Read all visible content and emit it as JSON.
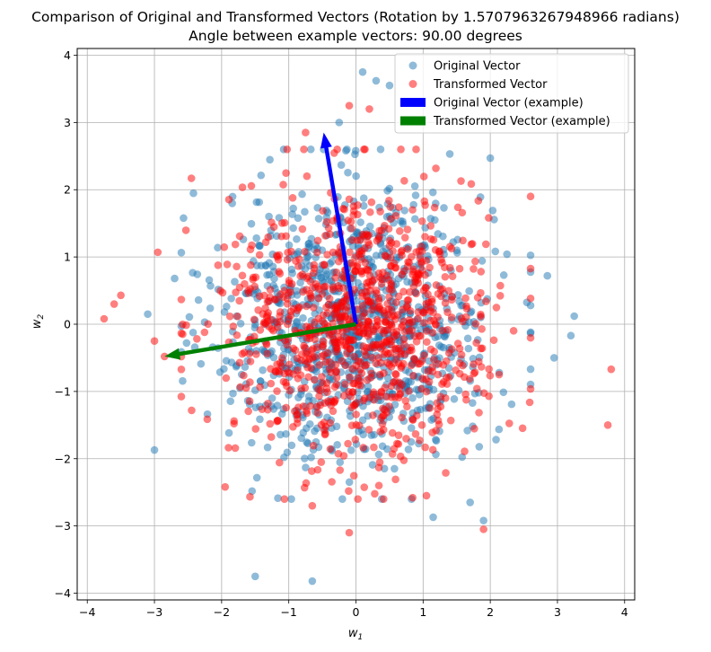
{
  "chart_data": {
    "type": "scatter",
    "title": "Comparison of Original and Transformed Vectors (Rotation by 1.5707963267948966 radians)",
    "subtitle": "Angle between example vectors: 90.00 degrees",
    "xlabel_base": "w",
    "xlabel_sub": "1",
    "ylabel_base": "w",
    "ylabel_sub": "2",
    "xlim": [
      -4.15,
      4.15
    ],
    "ylim": [
      -4.1,
      4.1
    ],
    "xticks": [
      -4,
      -3,
      -2,
      -1,
      0,
      1,
      2,
      3,
      4
    ],
    "yticks": [
      -4,
      -3,
      -2,
      -1,
      0,
      1,
      2,
      3,
      4
    ],
    "xtick_labels": [
      "−4",
      "−3",
      "−2",
      "−1",
      "0",
      "1",
      "2",
      "3",
      "4"
    ],
    "ytick_labels": [
      "−4",
      "−3",
      "−2",
      "−1",
      "0",
      "1",
      "2",
      "3",
      "4"
    ],
    "grid": true,
    "legend_position": "top-right",
    "series": [
      {
        "name": "Original Vector",
        "color": "#1f77b4",
        "sample_count": 1000,
        "distribution": "standard normal, mean [0, 0], std 1",
        "outlier_points": [
          {
            "x": 0.1,
            "y": 3.75
          },
          {
            "x": 0.3,
            "y": 3.62
          },
          {
            "x": -0.25,
            "y": 3.0
          },
          {
            "x": 0.5,
            "y": 3.55
          },
          {
            "x": 2.0,
            "y": 2.47
          },
          {
            "x": 3.25,
            "y": 0.12
          },
          {
            "x": -3.1,
            "y": 0.15
          },
          {
            "x": -3.0,
            "y": -1.87
          },
          {
            "x": -1.5,
            "y": -3.75
          },
          {
            "x": -0.65,
            "y": -3.82
          },
          {
            "x": 1.9,
            "y": -2.92
          },
          {
            "x": 1.7,
            "y": -2.65
          },
          {
            "x": 2.95,
            "y": -0.5
          },
          {
            "x": 2.85,
            "y": 0.72
          },
          {
            "x": 3.2,
            "y": -0.17
          },
          {
            "x": -2.7,
            "y": 0.68
          },
          {
            "x": 1.15,
            "y": -2.87
          }
        ]
      },
      {
        "name": "Transformed Vector",
        "color": "#ff0000",
        "sample_count": 1000,
        "distribution": "original vectors rotated by 90 degrees",
        "outlier_points": [
          {
            "x": -3.75,
            "y": 0.08
          },
          {
            "x": -3.6,
            "y": 0.3
          },
          {
            "x": -3.5,
            "y": 0.43
          },
          {
            "x": -2.95,
            "y": 1.07
          },
          {
            "x": -2.45,
            "y": 2.17
          },
          {
            "x": -0.75,
            "y": 2.85
          },
          {
            "x": -0.1,
            "y": 3.25
          },
          {
            "x": 0.2,
            "y": 3.2
          },
          {
            "x": 3.8,
            "y": -0.67
          },
          {
            "x": 3.75,
            "y": -1.5
          },
          {
            "x": 2.6,
            "y": 1.9
          },
          {
            "x": 1.9,
            "y": -3.05
          },
          {
            "x": -0.1,
            "y": -3.1
          },
          {
            "x": -0.65,
            "y": -2.7
          },
          {
            "x": -3.0,
            "y": -0.25
          },
          {
            "x": -2.85,
            "y": -0.48
          },
          {
            "x": 1.05,
            "y": -2.55
          }
        ]
      }
    ],
    "example_vectors": [
      {
        "name": "Original Vector (example)",
        "color": "#0000ff",
        "start": [
          0,
          0
        ],
        "end": [
          -0.48,
          2.85
        ]
      },
      {
        "name": "Transformed Vector (example)",
        "color": "#008000",
        "start": [
          0,
          0
        ],
        "end": [
          -2.85,
          -0.48
        ]
      }
    ]
  }
}
